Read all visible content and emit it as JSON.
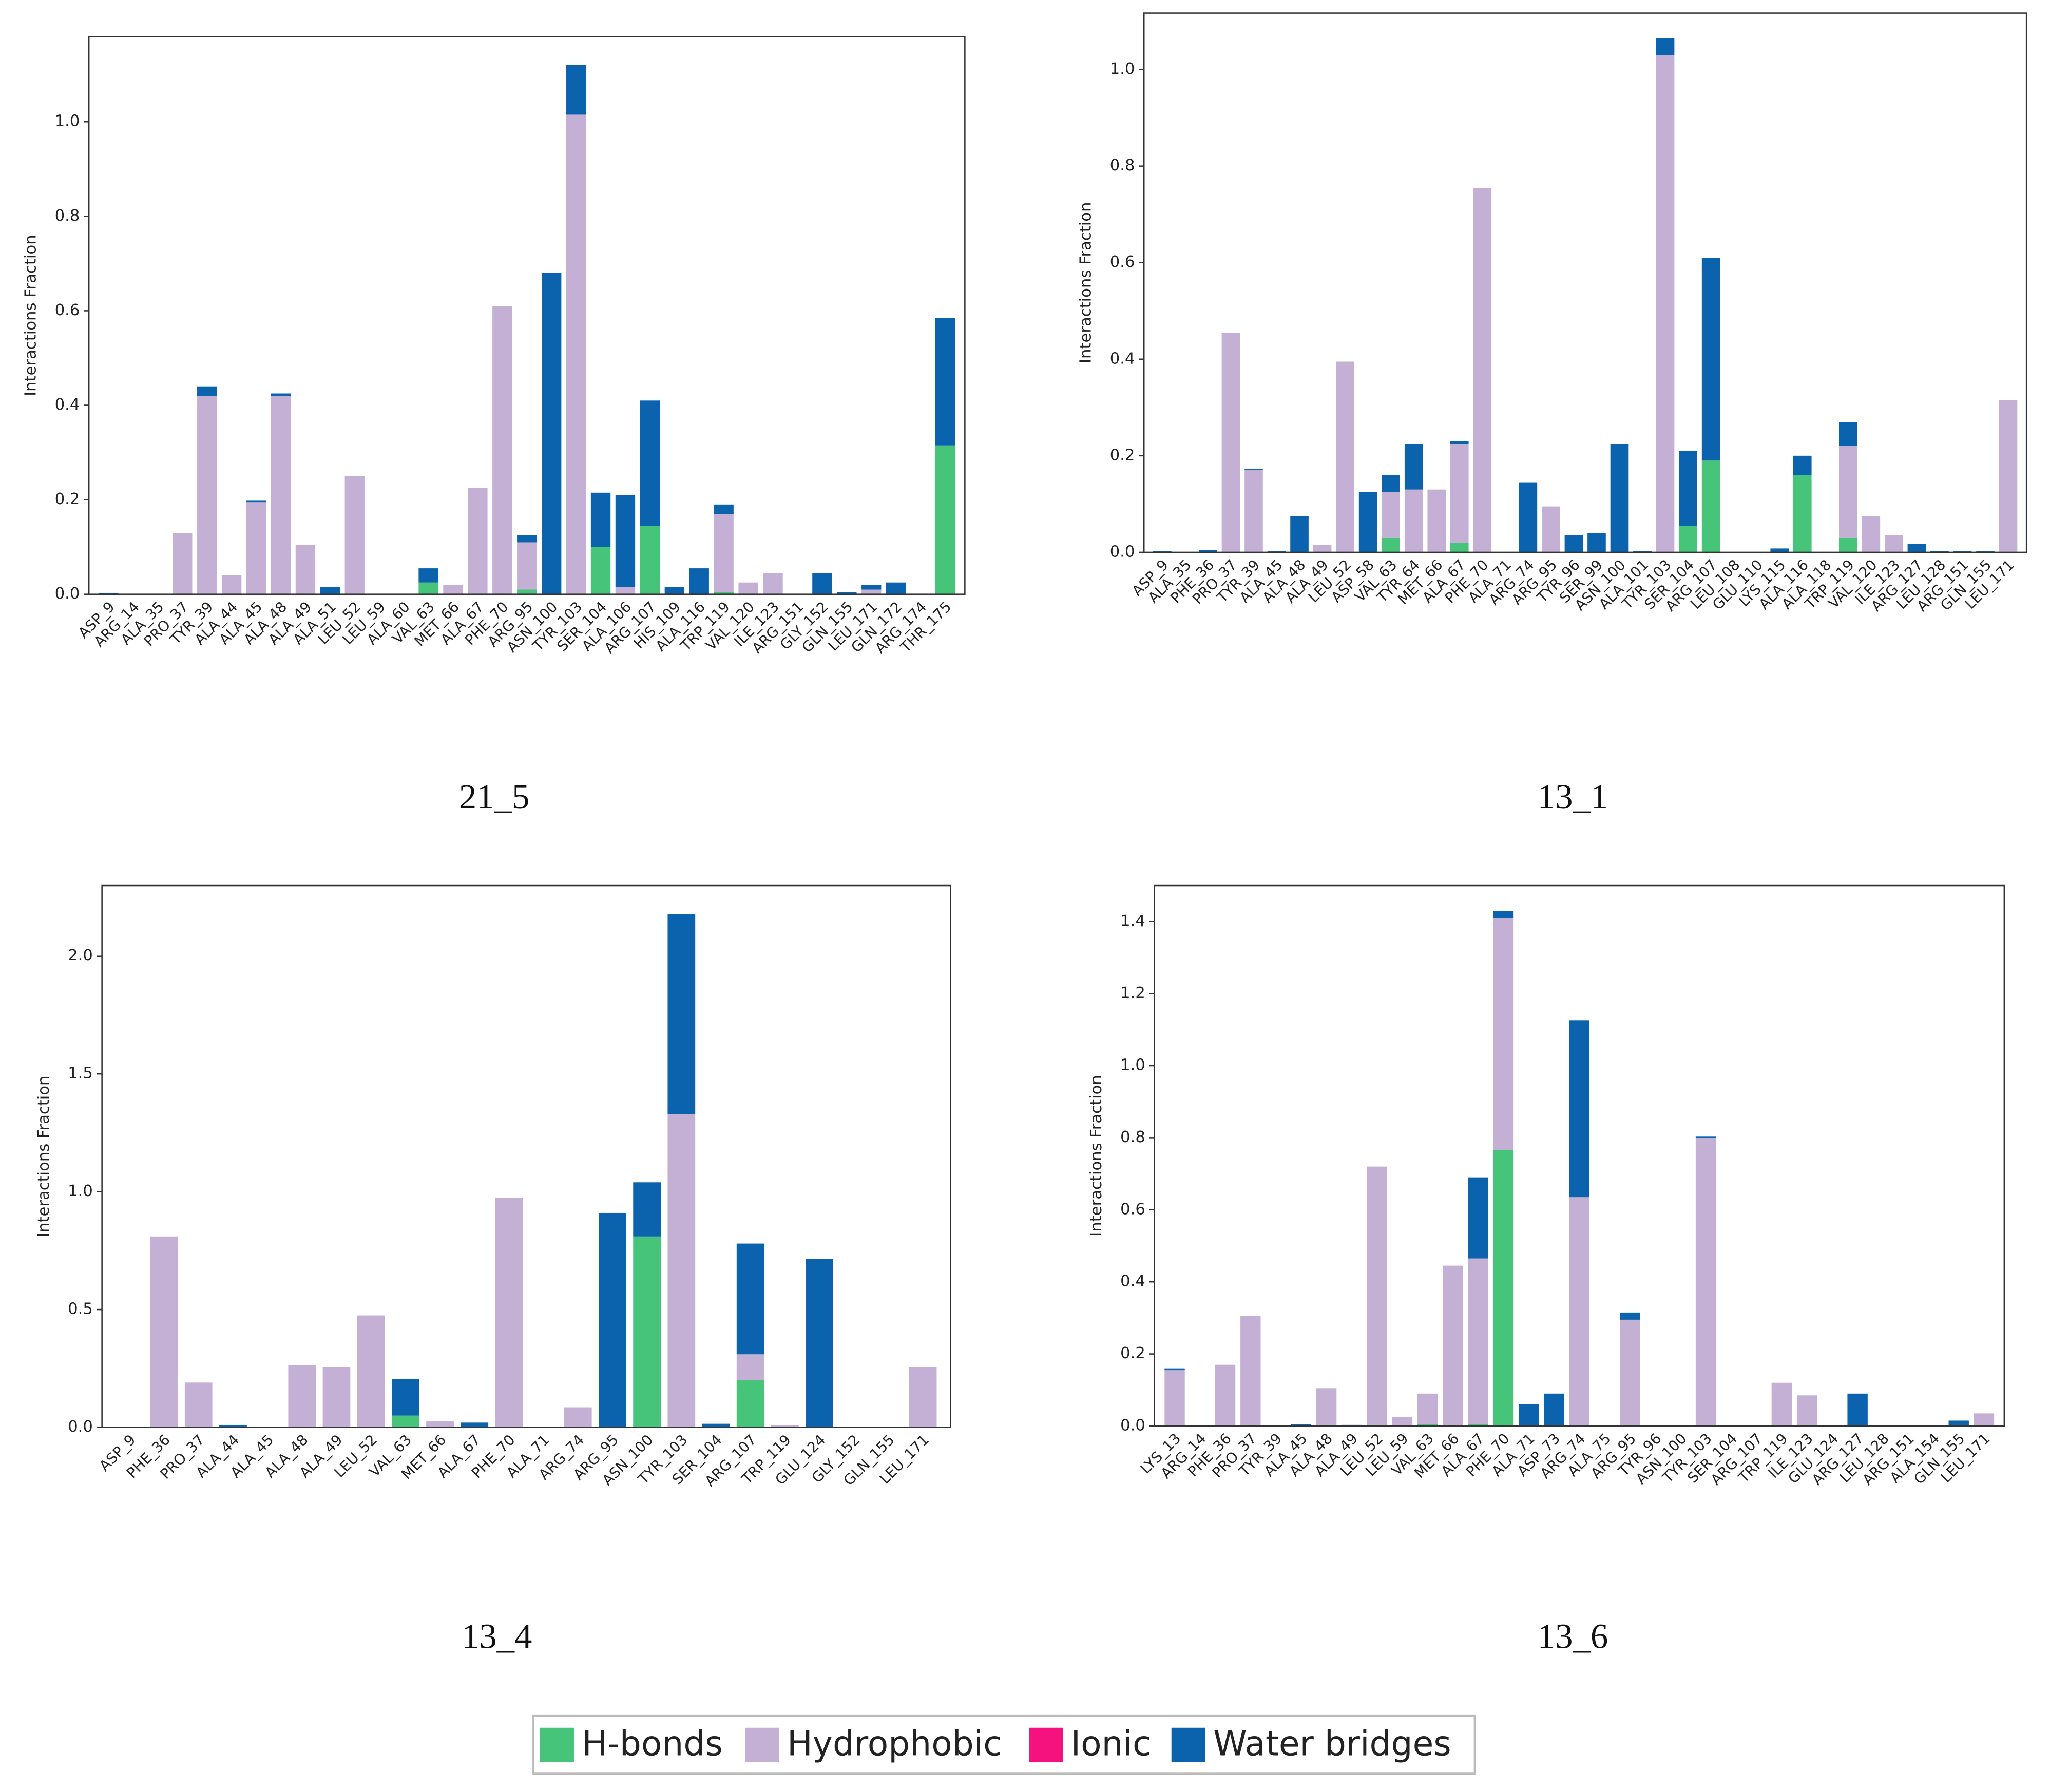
{
  "chart_data": [
    {
      "type": "bar",
      "stacked": true,
      "title": "21_5",
      "ylabel": "Interactions Fraction",
      "categories": [
        "ASP_9",
        "ARG_14",
        "ALA_35",
        "PRO_37",
        "TYR_39",
        "ALA_44",
        "ALA_45",
        "ALA_48",
        "ALA_49",
        "ALA_51",
        "LEU_52",
        "LEU_59",
        "ALA_60",
        "VAL_63",
        "MET_66",
        "ALA_67",
        "PHE_70",
        "ARG_95",
        "ASN_100",
        "TYR_103",
        "SER_104",
        "ALA_106",
        "ARG_107",
        "HIS_109",
        "ALA_116",
        "TRP_119",
        "VAL_120",
        "ILE_123",
        "ARG_151",
        "GLY_152",
        "GLN_155",
        "LEU_171",
        "GLN_172",
        "ARG_174",
        "THR_175"
      ],
      "series": [
        {
          "name": "H-bonds",
          "color": "#45c47a",
          "values": [
            0,
            0,
            0,
            0,
            0,
            0,
            0,
            0,
            0,
            0,
            0,
            0,
            0,
            0.025,
            0,
            0,
            0,
            0.01,
            0,
            0,
            0.1,
            0,
            0.145,
            0,
            0,
            0.005,
            0,
            0,
            0,
            0,
            0,
            0,
            0,
            0,
            0.315
          ]
        },
        {
          "name": "Hydrophobic",
          "color": "#c5b0d5",
          "values": [
            0,
            0,
            0,
            0.13,
            0.42,
            0.04,
            0.195,
            0.42,
            0.105,
            0,
            0.25,
            0,
            0,
            0,
            0.02,
            0.225,
            0.61,
            0.1,
            0,
            1.015,
            0,
            0.015,
            0,
            0,
            0,
            0.165,
            0.025,
            0.045,
            0,
            0,
            0,
            0.01,
            0,
            0,
            0
          ]
        },
        {
          "name": "Ionic",
          "color": "#f5127f",
          "values": [
            0,
            0,
            0,
            0,
            0,
            0,
            0,
            0,
            0,
            0,
            0,
            0,
            0,
            0,
            0,
            0,
            0,
            0,
            0,
            0,
            0,
            0,
            0,
            0,
            0,
            0,
            0,
            0,
            0,
            0,
            0,
            0,
            0,
            0,
            0
          ]
        },
        {
          "name": "Water bridges",
          "color": "#0b62ad",
          "values": [
            0.003,
            0,
            0,
            0,
            0.02,
            0,
            0.003,
            0.005,
            0,
            0.015,
            0,
            0,
            0,
            0.03,
            0,
            0,
            0,
            0.015,
            0.68,
            0.105,
            0.115,
            0.195,
            0.265,
            0.015,
            0.055,
            0.02,
            0,
            0,
            0,
            0.045,
            0.005,
            0.01,
            0.025,
            0,
            0.27
          ]
        }
      ],
      "ylim": [
        0,
        1.18
      ],
      "yticks": [
        {
          "value": 0,
          "label": "0.0"
        },
        0.2,
        0.4,
        0.6,
        0.8,
        {
          "value": 1,
          "label": "1.0"
        }
      ]
    },
    {
      "type": "bar",
      "stacked": true,
      "title": "13_1",
      "ylabel": "Interactions Fraction",
      "categories": [
        "ASP_9",
        "ALA_35",
        "PHE_36",
        "PRO_37",
        "TYR_39",
        "ALA_45",
        "ALA_48",
        "ALA_49",
        "LEU_52",
        "ASP_58",
        "VAL_63",
        "TYR_64",
        "MET_66",
        "ALA_67",
        "PHE_70",
        "ALA_71",
        "ARG_74",
        "ARG_95",
        "TYR_96",
        "SER_99",
        "ASN_100",
        "ALA_101",
        "TYR_103",
        "SER_104",
        "ARG_107",
        "LEU_108",
        "GLU_110",
        "LYS_115",
        "ALA_116",
        "ALA_118",
        "TRP_119",
        "VAL_120",
        "ILE_123",
        "ARG_127",
        "LEU_128",
        "ARG_151",
        "GLN_155",
        "LEU_171"
      ],
      "series": [
        {
          "name": "H-bonds",
          "color": "#45c47a",
          "values": [
            0,
            0,
            0,
            0,
            0,
            0,
            0,
            0,
            0,
            0,
            0.03,
            0,
            0,
            0.02,
            0,
            0,
            0,
            0,
            0,
            0,
            0,
            0,
            0,
            0.055,
            0.19,
            0,
            0,
            0,
            0.16,
            0,
            0.03,
            0,
            0,
            0,
            0,
            0,
            0,
            0
          ]
        },
        {
          "name": "Hydrophobic",
          "color": "#c5b0d5",
          "values": [
            0,
            0,
            0,
            0.455,
            0.17,
            0,
            0,
            0.015,
            0.395,
            0,
            0.095,
            0.13,
            0.13,
            0.205,
            0.755,
            0,
            0,
            0.095,
            0,
            0,
            0,
            0,
            1.03,
            0,
            0,
            0,
            0,
            0,
            0,
            0,
            0.19,
            0.075,
            0.035,
            0,
            0,
            0,
            0,
            0.315
          ]
        },
        {
          "name": "Ionic",
          "color": "#f5127f",
          "values": [
            0,
            0,
            0,
            0,
            0,
            0,
            0,
            0,
            0,
            0,
            0,
            0,
            0,
            0,
            0,
            0,
            0,
            0,
            0,
            0,
            0,
            0,
            0,
            0,
            0,
            0,
            0,
            0,
            0,
            0,
            0,
            0,
            0,
            0,
            0,
            0,
            0,
            0
          ]
        },
        {
          "name": "Water bridges",
          "color": "#0b62ad",
          "values": [
            0.003,
            0,
            0.005,
            0,
            0.003,
            0.003,
            0.075,
            0,
            0,
            0.125,
            0.035,
            0.095,
            0,
            0.005,
            0,
            0,
            0.145,
            0,
            0.035,
            0.04,
            0.225,
            0.003,
            0.035,
            0.155,
            0.42,
            0,
            0,
            0.008,
            0.04,
            0,
            0.05,
            0,
            0,
            0.018,
            0.003,
            0.003,
            0.003,
            0
          ]
        }
      ],
      "ylim": [
        0,
        1.117
      ],
      "yticks": [
        {
          "value": 0,
          "label": "0.0"
        },
        0.2,
        0.4,
        0.6,
        0.8,
        {
          "value": 1,
          "label": "1.0"
        }
      ]
    },
    {
      "type": "bar",
      "stacked": true,
      "title": "13_4",
      "ylabel": "Interactions Fraction",
      "categories": [
        "ASP_9",
        "PHE_36",
        "PRO_37",
        "ALA_44",
        "ALA_45",
        "ALA_48",
        "ALA_49",
        "LEU_52",
        "VAL_63",
        "MET_66",
        "ALA_67",
        "PHE_70",
        "ALA_71",
        "ARG_74",
        "ARG_95",
        "ASN_100",
        "TYR_103",
        "SER_104",
        "ARG_107",
        "TRP_119",
        "GLU_124",
        "GLY_152",
        "GLN_155",
        "LEU_171"
      ],
      "series": [
        {
          "name": "H-bonds",
          "color": "#45c47a",
          "values": [
            0,
            0,
            0,
            0,
            0,
            0,
            0,
            0,
            0.05,
            0,
            0,
            0,
            0,
            0,
            0,
            0.81,
            0,
            0,
            0.2,
            0,
            0,
            0,
            0,
            0
          ]
        },
        {
          "name": "Hydrophobic",
          "color": "#c5b0d5",
          "values": [
            0,
            0.81,
            0.19,
            0,
            0,
            0.265,
            0.255,
            0.475,
            0,
            0.025,
            0,
            0.975,
            0,
            0.085,
            0,
            0,
            1.33,
            0,
            0.11,
            0.01,
            0,
            0,
            0,
            0.255
          ]
        },
        {
          "name": "Ionic",
          "color": "#f5127f",
          "values": [
            0,
            0,
            0,
            0,
            0,
            0,
            0,
            0,
            0,
            0,
            0,
            0,
            0,
            0,
            0,
            0,
            0,
            0,
            0,
            0,
            0,
            0,
            0,
            0
          ]
        },
        {
          "name": "Water bridges",
          "color": "#0b62ad",
          "values": [
            0,
            0,
            0,
            0.01,
            0.003,
            0,
            0,
            0,
            0.155,
            0,
            0.02,
            0,
            0,
            0,
            0.91,
            0.23,
            0.85,
            0.015,
            0.47,
            0,
            0.715,
            0,
            0.003,
            0
          ]
        }
      ],
      "ylim": [
        0,
        2.3
      ],
      "yticks": [
        {
          "value": 0,
          "label": "0.0"
        },
        0.5,
        {
          "value": 1,
          "label": "1.0"
        },
        1.5,
        {
          "value": 2,
          "label": "2.0"
        }
      ]
    },
    {
      "type": "bar",
      "stacked": true,
      "title": "13_6",
      "ylabel": "Interactions Fraction",
      "categories": [
        "LYS_13",
        "ARG_14",
        "PHE_36",
        "PRO_37",
        "TYR_39",
        "ALA_45",
        "ALA_48",
        "ALA_49",
        "LEU_52",
        "LEU_59",
        "VAL_63",
        "MET_66",
        "ALA_67",
        "PHE_70",
        "ALA_71",
        "ASP_73",
        "ARG_74",
        "ALA_75",
        "ARG_95",
        "TYR_96",
        "ASN_100",
        "TYR_103",
        "SER_104",
        "ARG_107",
        "TRP_119",
        "ILE_123",
        "GLU_124",
        "ARG_127",
        "LEU_128",
        "ARG_151",
        "ALA_154",
        "GLN_155",
        "LEU_171"
      ],
      "series": [
        {
          "name": "H-bonds",
          "color": "#45c47a",
          "values": [
            0,
            0,
            0,
            0,
            0,
            0,
            0,
            0,
            0,
            0,
            0.005,
            0,
            0.005,
            0.765,
            0,
            0,
            0,
            0,
            0,
            0,
            0,
            0,
            0,
            0,
            0,
            0,
            0,
            0,
            0,
            0,
            0,
            0,
            0
          ]
        },
        {
          "name": "Hydrophobic",
          "color": "#c5b0d5",
          "values": [
            0.155,
            0,
            0.17,
            0.305,
            0,
            0,
            0.105,
            0,
            0.72,
            0.025,
            0.085,
            0.445,
            0.46,
            0.645,
            0,
            0,
            0.635,
            0,
            0.295,
            0,
            0,
            0.8,
            0,
            0,
            0.12,
            0.085,
            0,
            0,
            0,
            0,
            0,
            0,
            0.035
          ]
        },
        {
          "name": "Ionic",
          "color": "#f5127f",
          "values": [
            0,
            0,
            0,
            0,
            0,
            0,
            0,
            0,
            0,
            0,
            0,
            0,
            0,
            0,
            0,
            0,
            0,
            0,
            0,
            0,
            0,
            0,
            0,
            0,
            0,
            0,
            0,
            0,
            0,
            0,
            0,
            0,
            0
          ]
        },
        {
          "name": "Water bridges",
          "color": "#0b62ad",
          "values": [
            0.005,
            0,
            0,
            0,
            0,
            0.005,
            0,
            0.003,
            0,
            0,
            0,
            0,
            0.225,
            0.02,
            0.06,
            0.09,
            0.49,
            0,
            0.02,
            0,
            0,
            0.003,
            0,
            0,
            0,
            0,
            0,
            0.09,
            0,
            0,
            0,
            0.015,
            0
          ]
        }
      ],
      "ylim": [
        0,
        1.5
      ],
      "yticks": [
        {
          "value": 0,
          "label": "0.0"
        },
        0.2,
        0.4,
        0.6,
        0.8,
        {
          "value": 1,
          "label": "1.0"
        },
        1.2,
        1.4
      ]
    }
  ]
}
